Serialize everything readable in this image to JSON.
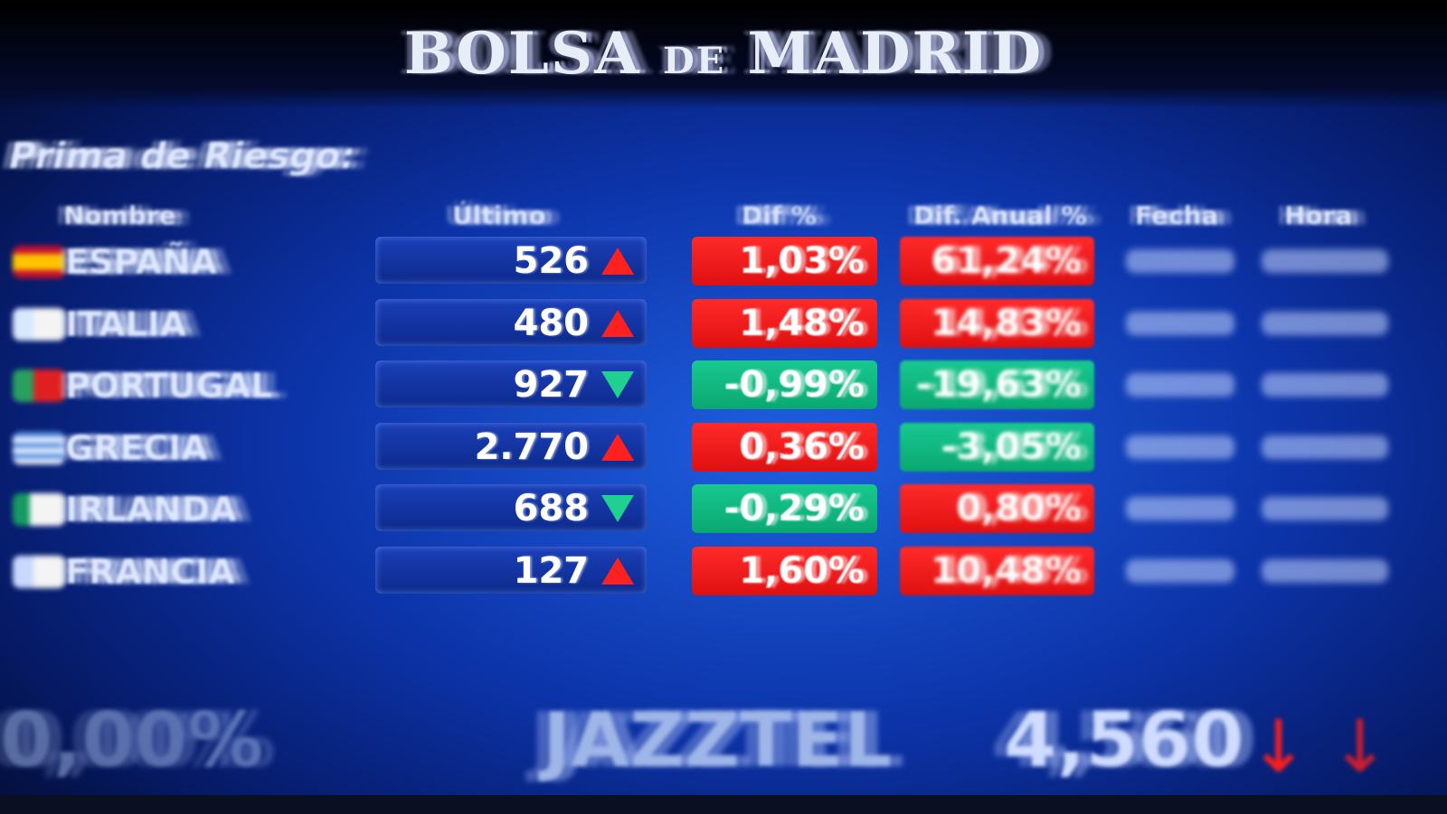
{
  "board": {
    "title_left": "BOLSA",
    "title_mid": "DE",
    "title_right": "MADRID",
    "section_title": "Prima de Riesgo:",
    "headers": {
      "name": "Nombre",
      "last": "Último",
      "diff": "Dif %",
      "annual": "Dif. Anual %",
      "date": "Fecha",
      "time": "Hora"
    },
    "rows": [
      {
        "name": "ESPAÑA",
        "last": "526",
        "trend": "up",
        "diff": "1,03%",
        "diff_color": "red",
        "annual": "61,24%",
        "annual_color": "red"
      },
      {
        "name": "ITALIA",
        "last": "480",
        "trend": "up",
        "diff": "1,48%",
        "diff_color": "red",
        "annual": "14,83%",
        "annual_color": "red"
      },
      {
        "name": "PORTUGAL",
        "last": "927",
        "trend": "down",
        "diff": "-0,99%",
        "diff_color": "green",
        "annual": "-19,63%",
        "annual_color": "green"
      },
      {
        "name": "GRECIA",
        "last": "2.770",
        "trend": "up",
        "diff": "0,36%",
        "diff_color": "red",
        "annual": "-3,05%",
        "annual_color": "green"
      },
      {
        "name": "IRLANDA",
        "last": "688",
        "trend": "down",
        "diff": "-0,29%",
        "diff_color": "green",
        "annual": "0,80%",
        "annual_color": "red"
      },
      {
        "name": "FRANCIA",
        "last": "127",
        "trend": "up",
        "diff": "1,60%",
        "diff_color": "red",
        "annual": "10,48%",
        "annual_color": "red"
      }
    ],
    "ticker": {
      "left_value": "0,00%",
      "symbol": "JAZZTEL",
      "price": "4,560"
    },
    "colors": {
      "up": "#ff2020",
      "down": "#20d090",
      "background": "#0c33a8"
    }
  }
}
